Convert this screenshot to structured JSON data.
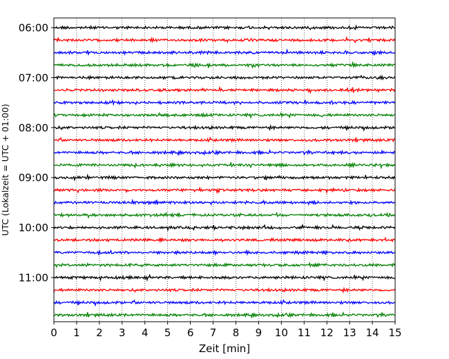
{
  "chart_data": {
    "type": "line",
    "title": "",
    "xlabel": "Zeit  [min]",
    "ylabel": "UTC (Lokalzeit = UTC + 01:00)",
    "xlim": [
      0,
      15
    ],
    "x_ticks": [
      0,
      1,
      2,
      3,
      4,
      5,
      6,
      7,
      8,
      9,
      10,
      11,
      12,
      13,
      14,
      15
    ],
    "y_ticks": [
      "06:00",
      "07:00",
      "08:00",
      "09:00",
      "10:00",
      "11:00"
    ],
    "y_start": "06:00",
    "trace_interval_min": 15,
    "trace_colors": [
      "#000000",
      "#ff0000",
      "#0000ff",
      "#008000"
    ],
    "grid": "vertical-dotted",
    "series": [
      {
        "start": "06:00"
      },
      {
        "start": "06:15"
      },
      {
        "start": "06:30"
      },
      {
        "start": "06:45"
      },
      {
        "start": "07:00"
      },
      {
        "start": "07:15"
      },
      {
        "start": "07:30"
      },
      {
        "start": "07:45"
      },
      {
        "start": "08:00"
      },
      {
        "start": "08:15"
      },
      {
        "start": "08:30"
      },
      {
        "start": "08:45"
      },
      {
        "start": "09:00"
      },
      {
        "start": "09:15"
      },
      {
        "start": "09:30"
      },
      {
        "start": "09:45"
      },
      {
        "start": "10:00"
      },
      {
        "start": "10:15"
      },
      {
        "start": "10:30"
      },
      {
        "start": "10:45"
      },
      {
        "start": "11:00"
      },
      {
        "start": "11:15"
      },
      {
        "start": "11:30"
      },
      {
        "start": "11:45"
      }
    ]
  }
}
